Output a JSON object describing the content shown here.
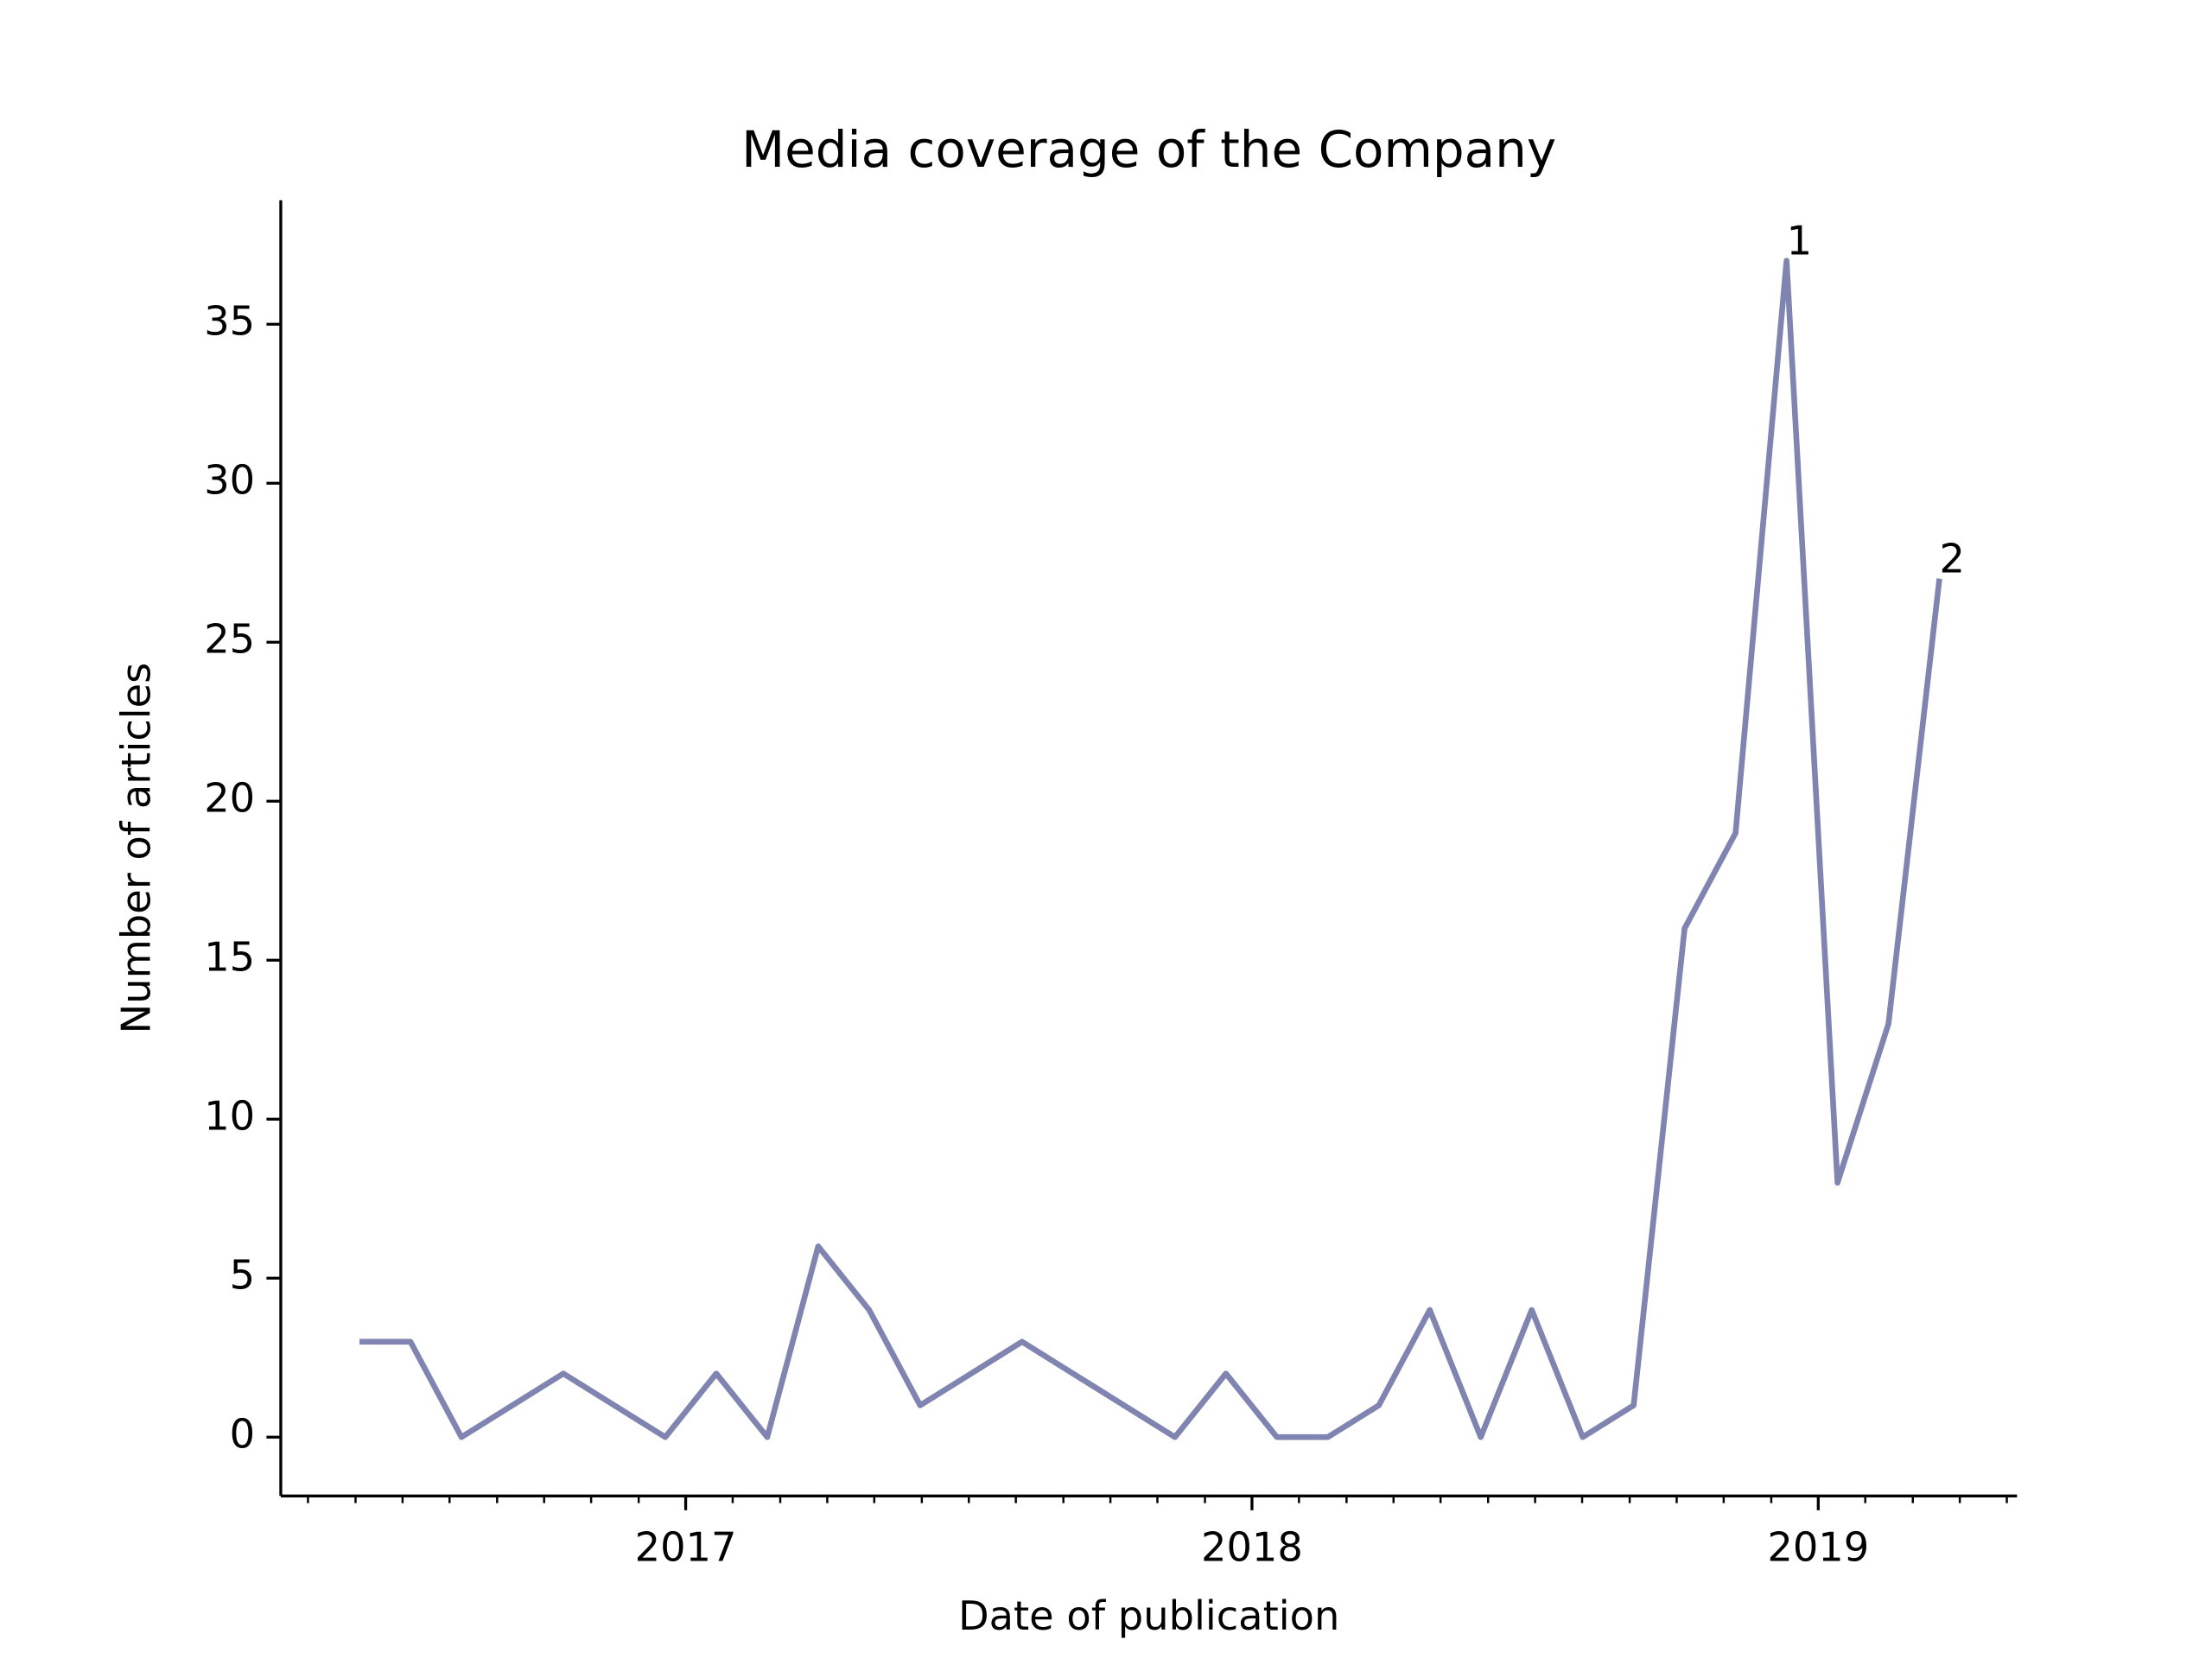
{
  "chart_data": {
    "type": "line",
    "title": "Media coverage of the Company",
    "xlabel": "Date of publication",
    "ylabel": "Number of articles",
    "x": [
      2016.424,
      2016.514,
      2016.604,
      2016.694,
      2016.784,
      2016.874,
      2016.964,
      2017.054,
      2017.144,
      2017.234,
      2017.324,
      2017.414,
      2017.504,
      2017.594,
      2017.684,
      2017.774,
      2017.864,
      2017.954,
      2018.044,
      2018.134,
      2018.224,
      2018.314,
      2018.404,
      2018.494,
      2018.584,
      2018.674,
      2018.764,
      2018.854,
      2018.944,
      2019.034,
      2019.124,
      2019.214
    ],
    "series": [
      {
        "name": "Number of articles",
        "color": "#7f84b0",
        "values": [
          3,
          3,
          0,
          1,
          2,
          1,
          0,
          2,
          0,
          6,
          4,
          1,
          2,
          3,
          2,
          1,
          0,
          2,
          0,
          0,
          1,
          4,
          0,
          4,
          0,
          1,
          16,
          19,
          37,
          8,
          13,
          27
        ]
      }
    ],
    "annotations": [
      {
        "text": "1",
        "x": 2018.944,
        "y": 37
      },
      {
        "text": "2",
        "x": 2019.214,
        "y": 27
      }
    ],
    "xlim": [
      2016.285,
      2019.351
    ],
    "xticks": [
      2017,
      2018,
      2019
    ],
    "xminorticks": [
      2016.333,
      2016.417,
      2016.5,
      2016.583,
      2016.667,
      2016.75,
      2016.833,
      2016.917,
      2017.083,
      2017.167,
      2017.25,
      2017.333,
      2017.417,
      2017.5,
      2017.583,
      2017.667,
      2017.75,
      2017.833,
      2017.917,
      2018.083,
      2018.167,
      2018.25,
      2018.333,
      2018.417,
      2018.5,
      2018.583,
      2018.667,
      2018.75,
      2018.833,
      2018.917,
      2019.083,
      2019.167,
      2019.25,
      2019.333
    ],
    "ylim": [
      -1.85,
      38.9
    ],
    "yticks": [
      0,
      5,
      10,
      15,
      20,
      25,
      30,
      35
    ],
    "grid": false
  }
}
